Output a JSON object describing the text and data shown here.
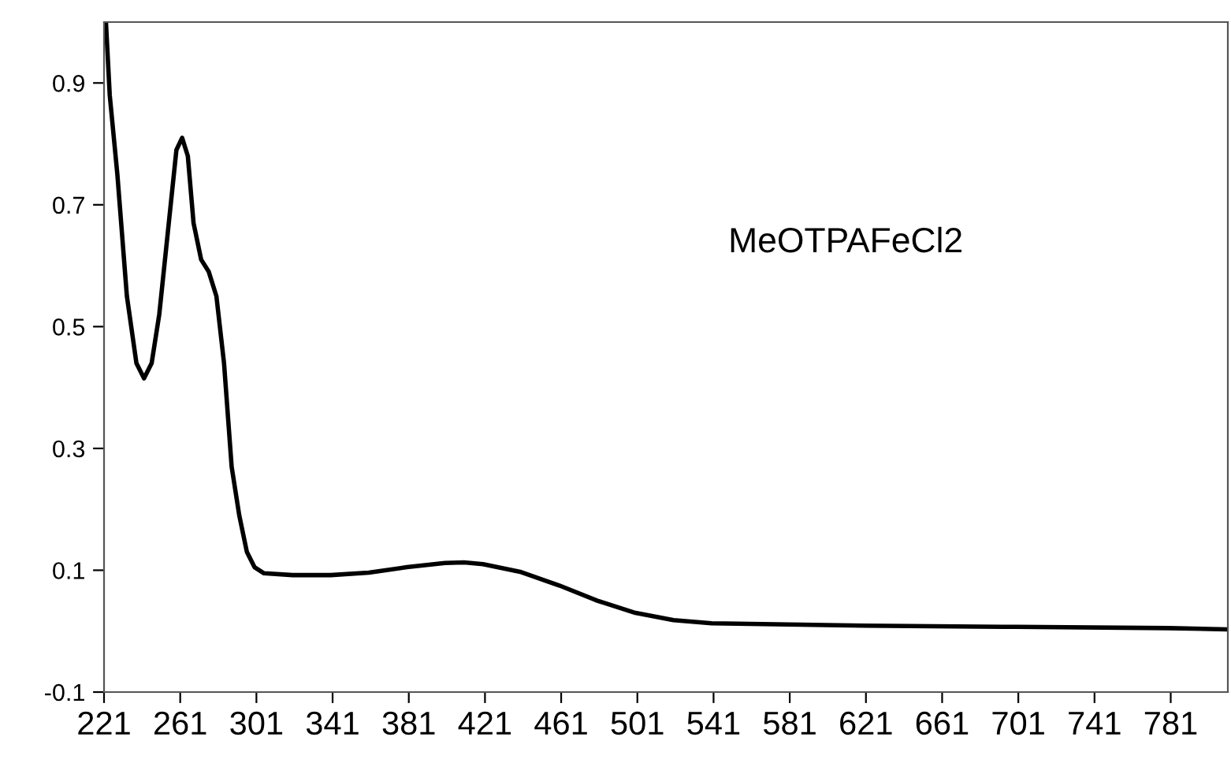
{
  "chart_data": {
    "type": "line",
    "annotations": [
      "MeOTPAFeCl2"
    ],
    "x": [
      222,
      224,
      228,
      233,
      238,
      242,
      246,
      250,
      255,
      259,
      262,
      265,
      268,
      272,
      276,
      280,
      284,
      288,
      292,
      296,
      300,
      305,
      320,
      340,
      360,
      380,
      400,
      410,
      420,
      440,
      460,
      480,
      500,
      520,
      540,
      580,
      620,
      700,
      780,
      811
    ],
    "series": [
      {
        "color": "#000000",
        "values": [
          1.0,
          0.88,
          0.75,
          0.55,
          0.44,
          0.415,
          0.44,
          0.52,
          0.67,
          0.79,
          0.81,
          0.78,
          0.67,
          0.61,
          0.59,
          0.55,
          0.44,
          0.27,
          0.19,
          0.13,
          0.105,
          0.095,
          0.092,
          0.092,
          0.096,
          0.105,
          0.112,
          0.113,
          0.11,
          0.097,
          0.075,
          0.05,
          0.03,
          0.018,
          0.013,
          0.011,
          0.009,
          0.007,
          0.005,
          0.003
        ]
      }
    ],
    "xlim": [
      221,
      811
    ],
    "ylim": [
      -0.1,
      1.0
    ],
    "xticks": [
      221,
      261,
      301,
      341,
      381,
      421,
      461,
      501,
      541,
      581,
      621,
      661,
      701,
      741,
      781
    ],
    "yticks": [
      -0.1,
      0.1,
      0.3,
      0.5,
      0.7,
      0.9
    ],
    "grid": false,
    "legend": false,
    "marker": "none",
    "line_style": "solid"
  }
}
